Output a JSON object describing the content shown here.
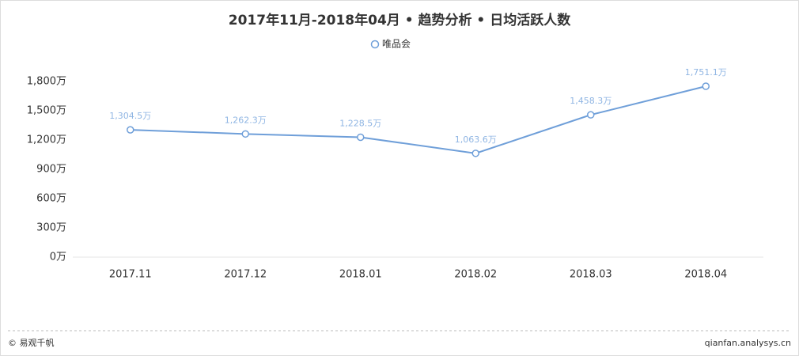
{
  "chart_data": {
    "type": "line",
    "title": "2017年11月-2018年04月 • 趋势分析 • 日均活跃人数",
    "categories": [
      "2017.11",
      "2017.12",
      "2018.01",
      "2018.02",
      "2018.03",
      "2018.04"
    ],
    "series": [
      {
        "name": "唯品会",
        "color": "#6f9fd9",
        "values": [
          1304.5,
          1262.3,
          1228.5,
          1063.6,
          1458.3,
          1751.1
        ],
        "value_labels": [
          "1,304.5万",
          "1,262.3万",
          "1,228.5万",
          "1,063.6万",
          "1,458.3万",
          "1,751.1万"
        ]
      }
    ],
    "ylim": [
      0,
      1800
    ],
    "yticks": [
      {
        "value": 0,
        "label": "0万"
      },
      {
        "value": 300,
        "label": "300万"
      },
      {
        "value": 600,
        "label": "600万"
      },
      {
        "value": 900,
        "label": "900万"
      },
      {
        "value": 1200,
        "label": "1,200万"
      },
      {
        "value": 1500,
        "label": "1,500万"
      },
      {
        "value": 1800,
        "label": "1,800万"
      }
    ],
    "grid": false
  },
  "footer": {
    "left": "© 易观千帆",
    "right": "qianfan.analysys.cn"
  }
}
